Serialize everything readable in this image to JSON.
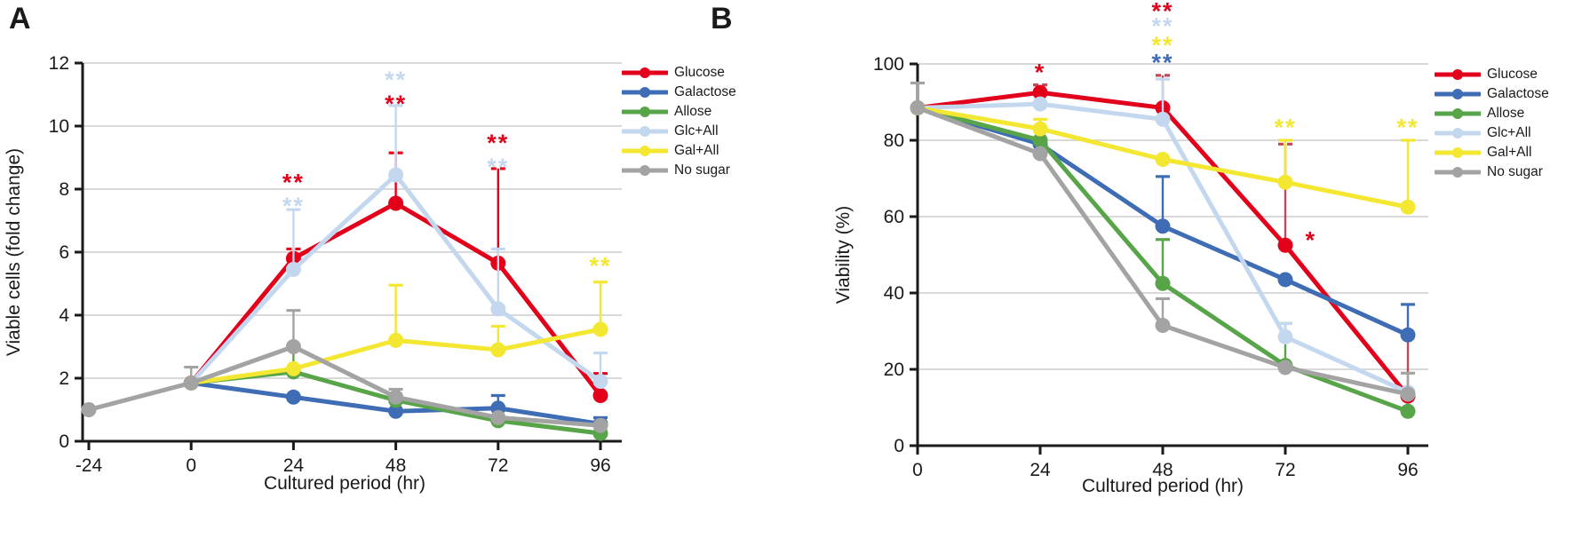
{
  "panels": [
    {
      "label": "A"
    },
    {
      "label": "B"
    }
  ],
  "colors": {
    "glucose": "#e2001a",
    "galactose": "#3e6db5",
    "allose": "#57a449",
    "glc_all": "#c3d8ef",
    "gal_all": "#f3e732",
    "no_sugar": "#a3a3a3",
    "glucose_err_dark": "#bf4a58",
    "gridline": "#d9d9d9",
    "axis": "#1a1a1a"
  },
  "chart_data": [
    {
      "type": "line",
      "title": "",
      "xlabel": "Cultured period (hr)",
      "ylabel": "Viable cells (fold change)",
      "x": [
        -24,
        0,
        24,
        48,
        72,
        96
      ],
      "xtick_labels": [
        "-24",
        "0",
        "24",
        "48",
        "72",
        "96"
      ],
      "ylim": [
        0,
        12
      ],
      "ytick_step": 2,
      "ytick_labels": [
        "0",
        "2",
        "4",
        "6",
        "8",
        "10",
        "12"
      ],
      "grid": true,
      "legend_position": "right",
      "series": [
        {
          "name": "Glucose",
          "color": "#e2001a",
          "err_color": "#e2001a",
          "cap_dashed": true,
          "values": [
            null,
            1.85,
            5.8,
            7.55,
            5.65,
            1.45
          ],
          "err_plus": [
            null,
            null,
            0.3,
            1.6,
            3.0,
            0.7
          ]
        },
        {
          "name": "Galactose",
          "color": "#3e6db5",
          "values": [
            null,
            1.85,
            1.4,
            0.95,
            1.05,
            0.55
          ],
          "err_plus": [
            null,
            null,
            null,
            0.45,
            0.4,
            0.2
          ]
        },
        {
          "name": "Allose",
          "color": "#57a449",
          "values": [
            null,
            1.85,
            2.2,
            1.3,
            0.65,
            0.25
          ],
          "err_plus": [
            null,
            null,
            0.85,
            null,
            null,
            null
          ]
        },
        {
          "name": "Glc+All",
          "color": "#c3d8ef",
          "values": [
            null,
            1.85,
            5.45,
            8.45,
            4.2,
            1.9
          ],
          "err_plus": [
            null,
            null,
            1.9,
            2.2,
            1.9,
            0.9
          ]
        },
        {
          "name": "Gal+All",
          "color": "#f3e732",
          "values": [
            null,
            1.85,
            2.3,
            3.2,
            2.9,
            3.55
          ],
          "err_plus": [
            null,
            null,
            null,
            1.75,
            0.75,
            1.5
          ]
        },
        {
          "name": "No sugar",
          "color": "#a3a3a3",
          "values": [
            1.0,
            1.85,
            3.0,
            1.4,
            0.75,
            0.5
          ],
          "err_plus": [
            null,
            0.5,
            1.15,
            0.25,
            null,
            null
          ]
        }
      ],
      "annotations": [
        {
          "x": 24,
          "y": 8.35,
          "text": "**",
          "color": "#e2001a"
        },
        {
          "x": 24,
          "y": 7.6,
          "text": "**",
          "color": "#c3d8ef"
        },
        {
          "x": 48,
          "y": 11.6,
          "text": "**",
          "color": "#c3d8ef"
        },
        {
          "x": 48,
          "y": 10.85,
          "text": "**",
          "color": "#e2001a"
        },
        {
          "x": 72,
          "y": 9.6,
          "text": "**",
          "color": "#e2001a"
        },
        {
          "x": 72,
          "y": 8.85,
          "text": "**",
          "color": "#c3d8ef"
        },
        {
          "x": 96,
          "y": 5.7,
          "text": "**",
          "color": "#f3e732"
        }
      ]
    },
    {
      "type": "line",
      "title": "",
      "xlabel": "Cultured period (hr)",
      "ylabel": "Viability (%)",
      "x": [
        0,
        24,
        48,
        72,
        96
      ],
      "xtick_labels": [
        "0",
        "24",
        "48",
        "72",
        "96"
      ],
      "ylim": [
        0,
        100
      ],
      "ytick_step": 20,
      "ytick_labels": [
        "0",
        "20",
        "40",
        "60",
        "80",
        "100"
      ],
      "grid": true,
      "legend_position": "right",
      "series": [
        {
          "name": "Glucose",
          "color": "#e2001a",
          "err_color": "#bf4a58",
          "cap_dashed": true,
          "values": [
            88.5,
            92.5,
            88.5,
            52.5,
            13
          ],
          "err_plus": [
            null,
            2,
            8.5,
            26.5,
            16
          ]
        },
        {
          "name": "Galactose",
          "color": "#3e6db5",
          "values": [
            88.5,
            79,
            57.5,
            43.5,
            29
          ],
          "err_plus": [
            null,
            null,
            13,
            null,
            8
          ]
        },
        {
          "name": "Allose",
          "color": "#57a449",
          "values": [
            88.5,
            80,
            42.5,
            21,
            9
          ],
          "err_plus": [
            null,
            null,
            11.5,
            11,
            null
          ]
        },
        {
          "name": "Glc+All",
          "color": "#c3d8ef",
          "values": [
            88.5,
            89.5,
            85.5,
            28.5,
            14
          ],
          "err_plus": [
            null,
            null,
            10.5,
            3.5,
            null
          ]
        },
        {
          "name": "Gal+All",
          "color": "#f3e732",
          "values": [
            88.5,
            83,
            75,
            69,
            62.5
          ],
          "err_plus": [
            null,
            2.5,
            null,
            11,
            17.5
          ]
        },
        {
          "name": "No sugar",
          "color": "#a3a3a3",
          "values": [
            88.5,
            76.5,
            31.5,
            20.5,
            13.5
          ],
          "err_plus": [
            6.5,
            null,
            7,
            null,
            5.5
          ]
        }
      ],
      "annotations": [
        {
          "x": 24,
          "y": 99,
          "text": "*",
          "color": "#e2001a"
        },
        {
          "x": 48,
          "y": 115,
          "text": "**",
          "color": "#e2001a"
        },
        {
          "x": 48,
          "y": 111,
          "text": "**",
          "color": "#c3d8ef"
        },
        {
          "x": 48,
          "y": 106,
          "text": "**",
          "color": "#f3e732"
        },
        {
          "x": 48,
          "y": 101.5,
          "text": "**",
          "color": "#3e6db5"
        },
        {
          "x": 72,
          "y": 84.5,
          "text": "**",
          "color": "#f3e732"
        },
        {
          "x": 77,
          "y": 55,
          "text": "*",
          "color": "#e2001a"
        },
        {
          "x": 96,
          "y": 84.5,
          "text": "**",
          "color": "#f3e732"
        }
      ]
    }
  ]
}
